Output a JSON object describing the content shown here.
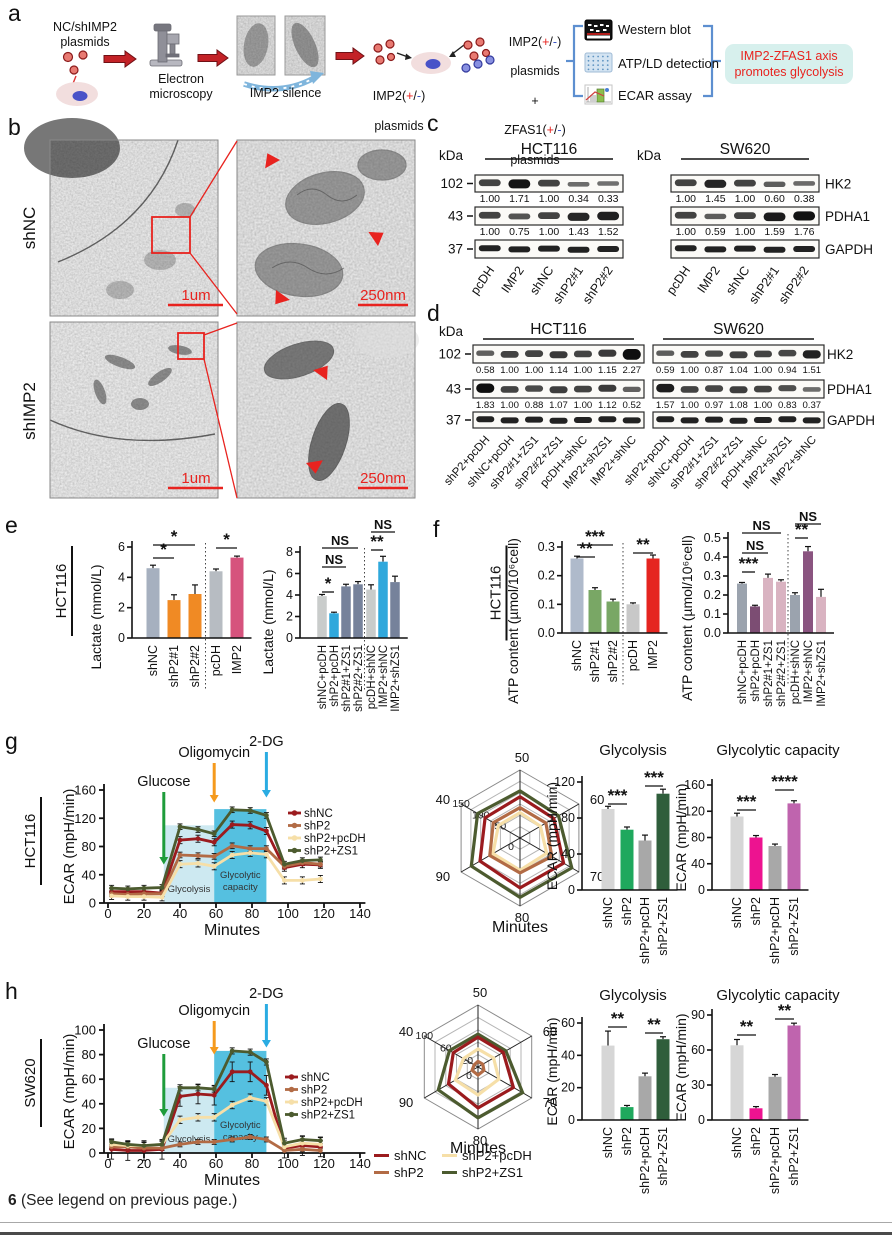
{
  "panels": {
    "a": {
      "label": "a",
      "nc_shimp2": "NC/shIMP2\nplasmids",
      "electron_microscopy": "Electron\nmicroscopy",
      "imp2_silence": "IMP2 silence",
      "imp2_name": "IMP2",
      "zfas1_name": "ZFAS1",
      "pm_open": "(",
      "pm_plus": "+",
      "pm_slash": "/",
      "pm_minus": "-",
      "pm_close": ")",
      "plasmids_word": "plasmids",
      "plus_sign": "+",
      "assays": [
        {
          "label": "Western blot"
        },
        {
          "label": "ATP/LD detection"
        },
        {
          "label": "ECAR assay"
        }
      ],
      "result": "IMP2-ZFAS1 axis\npromotes glycolysis"
    },
    "b": {
      "label": "b",
      "row_labels": [
        "shNC",
        "shIMP2"
      ],
      "scale_bar_large": "1um",
      "scale_bar_small": "250nm"
    },
    "c": {
      "label": "c",
      "kda_label": "kDa",
      "cell_lines": [
        "HCT116",
        "SW620"
      ],
      "markers": [
        "102",
        "43",
        "37"
      ],
      "proteins": [
        "HK2",
        "PDHA1",
        "GAPDH"
      ],
      "lanes": [
        "pcDH",
        "IMP2",
        "shNC",
        "shP2#1",
        "shP2#2"
      ],
      "groups": [
        {
          "cell_line": "HCT116",
          "hk2": [
            "1.00",
            "1.71",
            "1.00",
            "0.34",
            "0.33"
          ],
          "pdha1": [
            "1.00",
            "0.75",
            "1.00",
            "1.43",
            "1.52"
          ]
        },
        {
          "cell_line": "SW620",
          "hk2": [
            "1.00",
            "1.45",
            "1.00",
            "0.60",
            "0.38"
          ],
          "pdha1": [
            "1.00",
            "0.59",
            "1.00",
            "1.59",
            "1.76"
          ]
        }
      ]
    },
    "d": {
      "label": "d",
      "kda_label": "kDa",
      "cell_lines": [
        "HCT116",
        "SW620"
      ],
      "markers": [
        "102",
        "43",
        "37"
      ],
      "proteins": [
        "HK2",
        "PDHA1",
        "GAPDH"
      ],
      "lanes": [
        "shP2+pcDH",
        "shNC+pcDH",
        "shP2#1+ZS1",
        "shP2#2+ZS1",
        "pcDH+shNC",
        "IMP2+shZS1",
        "IMP2+shNC"
      ],
      "groups": [
        {
          "cell_line": "HCT116",
          "hk2": [
            "0.58",
            "1.00",
            "1.00",
            "1.14",
            "1.00",
            "1.15",
            "2.27"
          ],
          "pdha1": [
            "1.83",
            "1.00",
            "0.88",
            "1.07",
            "1.00",
            "1.12",
            "0.52"
          ]
        },
        {
          "cell_line": "SW620",
          "hk2": [
            "0.59",
            "1.00",
            "0.87",
            "1.04",
            "1.00",
            "0.94",
            "1.51"
          ],
          "pdha1": [
            "1.57",
            "1.00",
            "0.97",
            "1.08",
            "1.00",
            "0.83",
            "0.37"
          ]
        }
      ]
    },
    "e": {
      "label": "e",
      "cell_line": "HCT116"
    },
    "f": {
      "label": "f",
      "cell_line": "HCT116"
    },
    "g": {
      "label": "g",
      "cell_line": "HCT116"
    },
    "h": {
      "label": "h",
      "cell_line": "SW620"
    },
    "footer": {
      "figure_number": "6",
      "text": "(See legend on previous page.)"
    }
  },
  "chart_data": [
    {
      "id": "e_left",
      "type": "bar",
      "ylabel": "Lactate (mmol/L)",
      "ylim": [
        0,
        6
      ],
      "yticks": [
        0,
        2,
        4,
        6
      ],
      "categories": [
        "shNC",
        "shP2#1",
        "shP2#2",
        "pcDH",
        "IMP2"
      ],
      "values": [
        4.6,
        2.5,
        2.9,
        4.4,
        5.3
      ],
      "errors": [
        0.2,
        0.35,
        0.6,
        0.15,
        0.1
      ],
      "colors": [
        "#A6B0BF",
        "#F08A24",
        "#F08A24",
        "#B7BCC2",
        "#D6537D"
      ],
      "separator_after": 2,
      "significance": [
        {
          "a": 0,
          "b": 2,
          "label": "*"
        },
        {
          "a": 0,
          "b": 1,
          "label": "*"
        },
        {
          "a": 3,
          "b": 4,
          "label": "*"
        }
      ]
    },
    {
      "id": "e_right",
      "type": "bar",
      "ylabel": "Lactate (mmol/L)",
      "ylim": [
        0,
        8
      ],
      "yticks": [
        0,
        2,
        4,
        6,
        8
      ],
      "categories": [
        "shNC+pcDH",
        "shP2+pcDH",
        "shP2#1+ZS1",
        "shP2#2+ZS1",
        "pcDH+shNC",
        "IMP2+shNC",
        "IMP2+shZS1"
      ],
      "values": [
        3.9,
        2.3,
        4.8,
        5.0,
        4.5,
        7.1,
        5.2
      ],
      "errors": [
        0.15,
        0.1,
        0.2,
        0.25,
        0.45,
        0.5,
        0.55
      ],
      "colors": [
        "#C9CCCB",
        "#2FA8DC",
        "#76829B",
        "#76829B",
        "#C9CCCB",
        "#2FA8DC",
        "#76829B"
      ],
      "separator_after": 3,
      "significance": [
        {
          "a": 0,
          "b": 1,
          "label": "*"
        },
        {
          "a": 0,
          "b": 2,
          "label": "NS"
        },
        {
          "a": 0,
          "b": 3,
          "label": "NS"
        },
        {
          "a": 4,
          "b": 5,
          "label": "**"
        },
        {
          "a": 4,
          "b": 6,
          "label": "NS"
        }
      ]
    },
    {
      "id": "f_left",
      "type": "bar",
      "ylabel": "ATP content (µmol/10⁶cell)",
      "ylim": [
        0,
        0.3
      ],
      "yticks": [
        0,
        0.1,
        0.2,
        0.3
      ],
      "categories": [
        "shNC",
        "shP2#1",
        "shP2#2",
        "pcDH",
        "IMP2"
      ],
      "values": [
        0.26,
        0.15,
        0.11,
        0.1,
        0.26
      ],
      "errors": [
        0.008,
        0.008,
        0.008,
        0.005,
        0.012
      ],
      "colors": [
        "#AFBACB",
        "#79A765",
        "#79A765",
        "#C8C8C8",
        "#E52520"
      ],
      "separator_after": 2,
      "significance": [
        {
          "a": 0,
          "b": 1,
          "label": "**"
        },
        {
          "a": 0,
          "b": 2,
          "label": "***"
        },
        {
          "a": 3,
          "b": 4,
          "label": "**"
        }
      ]
    },
    {
      "id": "f_right",
      "type": "bar",
      "ylabel": "ATP content (µmol/10⁶cell)",
      "ylim": [
        0,
        0.5
      ],
      "yticks": [
        0,
        0.1,
        0.2,
        0.3,
        0.4,
        0.5
      ],
      "categories": [
        "shNC+pcDH",
        "shP2+pcDH",
        "shP2#1+ZS1",
        "shP2#2+ZS1",
        "pcDH+shNC",
        "IMP2+shNC",
        "IMP2+shZS1"
      ],
      "values": [
        0.26,
        0.14,
        0.29,
        0.27,
        0.2,
        0.43,
        0.19
      ],
      "errors": [
        0.006,
        0.006,
        0.02,
        0.01,
        0.012,
        0.025,
        0.04
      ],
      "colors": [
        "#9BA3AE",
        "#7C4D73",
        "#D9B3C1",
        "#D9B3C1",
        "#9BA3AE",
        "#8A5480",
        "#D9B3C1"
      ],
      "separator_after": 3,
      "significance": [
        {
          "a": 0,
          "b": 1,
          "label": "***"
        },
        {
          "a": 0,
          "b": 2,
          "label": "NS"
        },
        {
          "a": 0,
          "b": 3,
          "label": "NS"
        },
        {
          "a": 4,
          "b": 5,
          "label": "**"
        },
        {
          "a": 4,
          "b": 6,
          "label": "NS"
        }
      ]
    },
    {
      "id": "g_line",
      "type": "line",
      "ylabel": "ECAR (mpH/min)",
      "xlabel": "Minutes",
      "ylim": [
        0,
        160
      ],
      "yticks": [
        0,
        40,
        80,
        120,
        160
      ],
      "xlim": [
        0,
        140
      ],
      "xticks": [
        0,
        20,
        40,
        60,
        80,
        100,
        120,
        140
      ],
      "x": [
        2,
        11,
        20,
        30,
        40,
        50,
        59,
        69,
        79,
        88,
        98,
        108,
        118
      ],
      "regions": [
        {
          "label": "Glycolysis",
          "x0": 31,
          "x1": 59,
          "top": 110,
          "color": "#CDE9F1"
        },
        {
          "label": "Glycolytic capacity",
          "x0": 59,
          "x1": 88,
          "top": 133,
          "color": "#55C0E0"
        }
      ],
      "arrows": [
        {
          "label": "Glucose",
          "x": 31,
          "color": "#1E9C3B"
        },
        {
          "label": "Oligomycin",
          "x": 59,
          "color": "#F59A1D"
        },
        {
          "label": "2-DG",
          "x": 88,
          "color": "#2AACE2"
        }
      ],
      "series": [
        {
          "name": "shNC",
          "color": "#9B1B1E",
          "err": 5,
          "values": [
            16,
            16,
            16,
            14,
            89,
            91,
            86,
            111,
            110,
            102,
            50,
            55,
            54
          ]
        },
        {
          "name": "shP2",
          "color": "#B26B45",
          "err": 4,
          "values": [
            13,
            12,
            13,
            13,
            68,
            67,
            66,
            81,
            77,
            77,
            52,
            57,
            55
          ]
        },
        {
          "name": "shP2+pcDH",
          "color": "#F6DFA8",
          "err": 5,
          "values": [
            10,
            9,
            9,
            8,
            55,
            56,
            52,
            68,
            71,
            69,
            32,
            32,
            34
          ]
        },
        {
          "name": "shP2+ZS1",
          "color": "#4C5B2F",
          "err": 4,
          "values": [
            21,
            20,
            21,
            22,
            108,
            104,
            98,
            132,
            131,
            124,
            55,
            60,
            61
          ]
        }
      ]
    },
    {
      "id": "g_radar",
      "type": "radar",
      "axis_label": "Minutes",
      "axis_ticks": [
        "50",
        "60",
        "70",
        "80",
        "90",
        "40"
      ],
      "max": 150,
      "ring_step": 25,
      "ring_labels": [
        50,
        100,
        150
      ],
      "zero_label": "0",
      "series": [
        {
          "name": "shNC",
          "color": "#9B1B1E",
          "values": [
            91,
            86,
            111,
            110,
            102,
            89
          ]
        },
        {
          "name": "shP2",
          "color": "#B26B45",
          "values": [
            67,
            66,
            81,
            77,
            77,
            68
          ]
        },
        {
          "name": "shP2+pcDH",
          "color": "#F6DFA8",
          "values": [
            56,
            52,
            68,
            71,
            69,
            55
          ]
        },
        {
          "name": "shP2+ZS1",
          "color": "#4C5B2F",
          "values": [
            104,
            98,
            132,
            131,
            124,
            108
          ]
        }
      ]
    },
    {
      "id": "g_glyco",
      "type": "bar",
      "title": "Glycolysis",
      "ylabel": "ECAR (mpH/min)",
      "ylim": [
        0,
        120
      ],
      "yticks": [
        0,
        40,
        80,
        120
      ],
      "categories": [
        "shNC",
        "shP2",
        "shP2+pcDH",
        "shP2+ZS1"
      ],
      "values": [
        90,
        67,
        55,
        107
      ],
      "errors": [
        3,
        3,
        6,
        5
      ],
      "colors": [
        "#D6D6D6",
        "#1FA85D",
        "#A8A8A8",
        "#2F5E3B"
      ],
      "separator_after": null,
      "significance": [
        {
          "a": 0,
          "b": 1,
          "label": "***"
        },
        {
          "a": 2,
          "b": 3,
          "label": "***"
        }
      ]
    },
    {
      "id": "g_cap",
      "type": "bar",
      "title": "Glycolytic capacity",
      "ylabel": "ECAR (mpH/min)",
      "ylim": [
        0,
        160
      ],
      "yticks": [
        0,
        40,
        80,
        120,
        160
      ],
      "categories": [
        "shNC",
        "shP2",
        "shP2+pcDH",
        "shP2+ZS1"
      ],
      "values": [
        112,
        80,
        67,
        132
      ],
      "errors": [
        5,
        3,
        3,
        4
      ],
      "colors": [
        "#D6D6D6",
        "#ED1390",
        "#A8A8A8",
        "#BF64AE"
      ],
      "separator_after": null,
      "significance": [
        {
          "a": 0,
          "b": 1,
          "label": "***"
        },
        {
          "a": 2,
          "b": 3,
          "label": "****"
        }
      ]
    },
    {
      "id": "h_line",
      "type": "line",
      "ylabel": "ECAR (mpH/min)",
      "xlabel": "Minutes",
      "ylim": [
        0,
        100
      ],
      "yticks": [
        0,
        20,
        40,
        60,
        80,
        100
      ],
      "xlim": [
        0,
        140
      ],
      "xticks": [
        0,
        20,
        40,
        60,
        80,
        100,
        120,
        140
      ],
      "x": [
        2,
        11,
        20,
        30,
        40,
        50,
        59,
        69,
        79,
        88,
        98,
        108,
        118
      ],
      "regions": [
        {
          "label": "Glycolysis",
          "x0": 31,
          "x1": 59,
          "top": 53,
          "color": "#CDE9F1"
        },
        {
          "label": "Glycolytic capacity",
          "x0": 59,
          "x1": 88,
          "top": 83,
          "color": "#55C0E0"
        }
      ],
      "arrows": [
        {
          "label": "Glucose",
          "x": 31,
          "color": "#1E9C3B"
        },
        {
          "label": "Oligomycin",
          "x": 59,
          "color": "#F59A1D"
        },
        {
          "label": "2-DG",
          "x": 88,
          "color": "#2AACE2"
        }
      ],
      "series": [
        {
          "name": "shNC",
          "color": "#9B1B1E",
          "err": 8,
          "values": [
            3,
            2,
            2,
            3,
            46,
            48,
            47,
            66,
            66,
            55,
            4,
            6,
            5
          ]
        },
        {
          "name": "shP2",
          "color": "#B26B45",
          "err": 2,
          "values": [
            5,
            5,
            4,
            4,
            7,
            9,
            9,
            11,
            13,
            11,
            2,
            3,
            2
          ]
        },
        {
          "name": "shP2+pcDH",
          "color": "#F6DFA8",
          "err": 3,
          "values": [
            7,
            6,
            6,
            7,
            27,
            29,
            29,
            39,
            45,
            42,
            5,
            8,
            7
          ]
        },
        {
          "name": "shP2+ZS1",
          "color": "#4C5B2F",
          "err": 2.5,
          "values": [
            9,
            7,
            6,
            7,
            53,
            53,
            52,
            83,
            82,
            74,
            8,
            11,
            10
          ]
        }
      ]
    },
    {
      "id": "h_radar",
      "type": "radar",
      "axis_label": "Minutes",
      "axis_ticks": [
        "50",
        "60",
        "70",
        "80",
        "90",
        "40"
      ],
      "max": 100,
      "ring_step": 20,
      "ring_labels": [
        20,
        60,
        100
      ],
      "zero_label": "0",
      "series": [
        {
          "name": "shNC",
          "color": "#9B1B1E",
          "values": [
            48,
            47,
            66,
            66,
            55,
            46
          ]
        },
        {
          "name": "shP2",
          "color": "#B26B45",
          "values": [
            9,
            9,
            11,
            13,
            11,
            7
          ]
        },
        {
          "name": "shP2+pcDH",
          "color": "#F6DFA8",
          "values": [
            29,
            29,
            39,
            45,
            42,
            27
          ]
        },
        {
          "name": "shP2+ZS1",
          "color": "#4C5B2F",
          "values": [
            53,
            52,
            83,
            82,
            74,
            53
          ]
        }
      ]
    },
    {
      "id": "h_glyco",
      "type": "bar",
      "title": "Glycolysis",
      "ylabel": "ECAR (mpH/min)",
      "ylim": [
        0,
        60
      ],
      "yticks": [
        0,
        20,
        40,
        60
      ],
      "categories": [
        "shNC",
        "shP2",
        "shP2+pcDH",
        "shP2+ZS1"
      ],
      "values": [
        46,
        8,
        27,
        50
      ],
      "errors": [
        9,
        1,
        2,
        1.5
      ],
      "colors": [
        "#D6D6D6",
        "#1FA85D",
        "#A8A8A8",
        "#2F5E3B"
      ],
      "separator_after": null,
      "significance": [
        {
          "a": 0,
          "b": 1,
          "label": "**"
        },
        {
          "a": 2,
          "b": 3,
          "label": "**"
        }
      ]
    },
    {
      "id": "h_cap",
      "type": "bar",
      "title": "Glycolytic capacity",
      "ylabel": "ECAR (mpH/min)",
      "ylim": [
        0,
        90
      ],
      "yticks": [
        0,
        30,
        60,
        90
      ],
      "categories": [
        "shNC",
        "shP2",
        "shP2+pcDH",
        "shP2+ZS1"
      ],
      "values": [
        64,
        10,
        37,
        81
      ],
      "errors": [
        5,
        1.5,
        2,
        2
      ],
      "colors": [
        "#D6D6D6",
        "#ED1390",
        "#A8A8A8",
        "#BF64AE"
      ],
      "separator_after": null,
      "significance": [
        {
          "a": 0,
          "b": 1,
          "label": "**"
        },
        {
          "a": 2,
          "b": 3,
          "label": "**"
        }
      ]
    }
  ]
}
